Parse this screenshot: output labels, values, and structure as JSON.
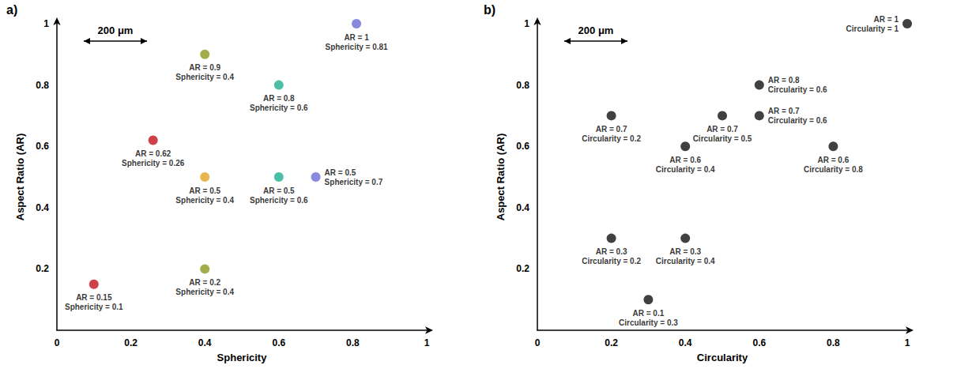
{
  "chart_data": [
    {
      "type": "scatter",
      "title": "a)",
      "x_label": "Sphericity",
      "y_label": "Aspect Ratio (AR)",
      "annotations": [
        "200 μm"
      ],
      "xlim": [
        0,
        1
      ],
      "ylim": [
        0,
        1
      ],
      "xticks": [
        0,
        0.2,
        0.4,
        0.6,
        0.8,
        1
      ],
      "yticks": [
        0.2,
        0.4,
        0.6,
        0.8,
        1
      ],
      "grid": false,
      "marker": "circle",
      "data_labels": true,
      "x": [
        0.4,
        0.6,
        0.81,
        0.26,
        0.4,
        0.6,
        0.7,
        0.1,
        0.4
      ],
      "y": [
        0.9,
        0.8,
        1,
        0.62,
        0.5,
        0.5,
        0.5,
        0.15,
        0.2
      ],
      "value_labels": [
        "AR = 0.9\nSphericity = 0.4",
        "AR = 0.8\nSphericity = 0.6",
        "AR = 1\nSphericity = 0.81",
        "AR = 0.62\nSphericity = 0.26",
        "AR = 0.5\nSphericity = 0.4",
        "AR = 0.5\nSphericity = 0.6",
        "AR = 0.5\nSphericity = 0.7",
        "AR = 0.15\nSphericity = 0.1",
        "AR = 0.2\nSphericity = 0.4"
      ],
      "colors": [
        "#8c9a1c",
        "#1fae8e",
        "#6b6bd6",
        "#c3121b",
        "#e2a523",
        "#1fae8e",
        "#6b6bd6",
        "#c3121b",
        "#8c9a1c"
      ]
    },
    {
      "type": "scatter",
      "title": "b)",
      "x_label": "Circularity",
      "y_label": "Aspect Ratio (AR)",
      "annotations": [
        "200 μm"
      ],
      "xlim": [
        0,
        1
      ],
      "ylim": [
        0,
        1
      ],
      "xticks": [
        0,
        0.2,
        0.4,
        0.6,
        0.8,
        1
      ],
      "yticks": [
        0.2,
        0.4,
        0.6,
        0.8,
        1
      ],
      "grid": false,
      "marker": "circle",
      "data_labels": true,
      "x": [
        1,
        0.2,
        0.5,
        0.6,
        0.6,
        0.4,
        0.8,
        0.2,
        0.4,
        0.3
      ],
      "y": [
        1,
        0.7,
        0.7,
        0.8,
        0.7,
        0.6,
        0.6,
        0.3,
        0.3,
        0.1
      ],
      "value_labels": [
        "AR = 1\nCircularity = 1",
        "AR = 0.7\nCircularity = 0.2",
        "AR = 0.7\nCircularity = 0.5",
        "AR = 0.8\nCircularity = 0.6",
        "AR = 0.7\nCircularity = 0.6",
        "AR = 0.6\nCircularity = 0.4",
        "AR = 0.6\nCircularity = 0.8",
        "AR = 0.3\nCircularity = 0.2",
        "AR = 0.3\nCircularity = 0.4",
        "AR = 0.1\nCircularity = 0.3"
      ],
      "colors": [
        "#111111",
        "#111111",
        "#111111",
        "#111111",
        "#111111",
        "#111111",
        "#111111",
        "#111111",
        "#111111",
        "#111111"
      ]
    }
  ]
}
